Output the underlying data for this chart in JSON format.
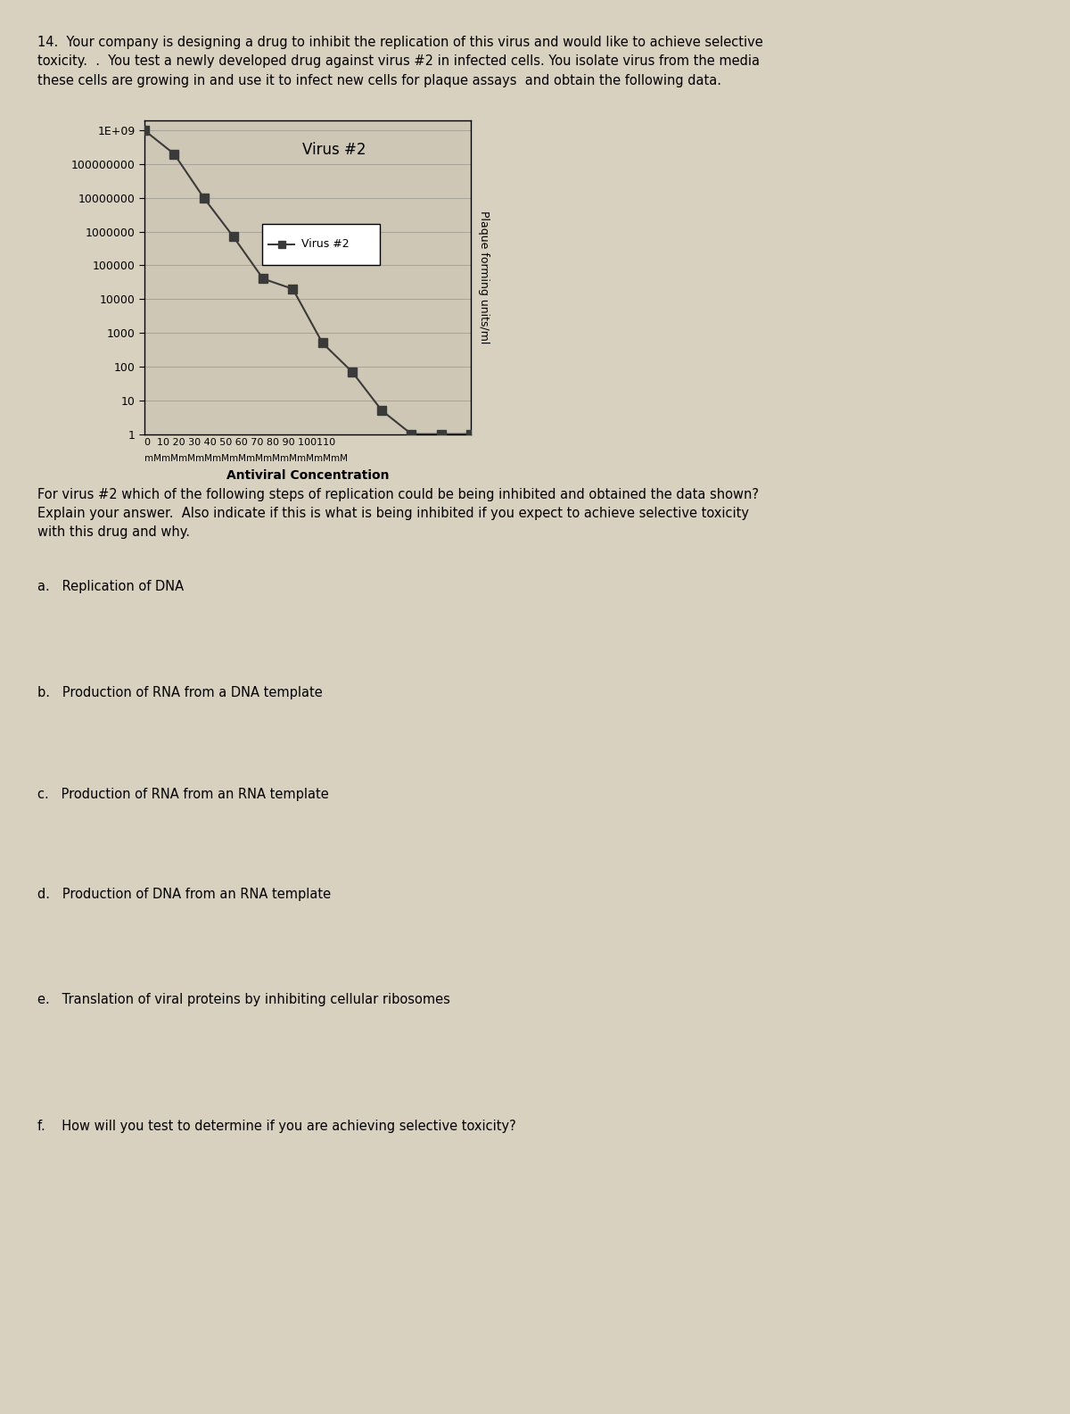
{
  "title_text": "14.  Your company is designing a drug to inhibit the replication of this virus and would like to achieve selective\ntoxicity.  .  You test a newly developed drug against virus #2 in infected cells. You isolate virus from the media\nthese cells are growing in and use it to infect new cells for plaque assays  and obtain the following data.",
  "chart_title": "Virus #2",
  "legend_label": "Virus #2",
  "xlabel_line1": "0  10 20 30 40 50 60 70 80 90 100110",
  "xlabel_line2": "mMmMmMmMmMmMmMmMmMmMmMmM",
  "xlabel_main": "Antiviral Concentration",
  "ylabel": "Plaque forming units/ml",
  "x_values": [
    0,
    10,
    20,
    30,
    40,
    50,
    60,
    70,
    80,
    90,
    100,
    110
  ],
  "y_values": [
    1000000000,
    200000000,
    10000000,
    700000,
    40000,
    20000,
    500,
    70,
    5,
    1,
    1,
    1
  ],
  "ytick_labels": [
    "1E+09",
    "100000000",
    "10000000",
    "1000000",
    "100000",
    "10000",
    "1000",
    "100",
    "10",
    "1"
  ],
  "ytick_values": [
    1000000000,
    100000000,
    10000000,
    1000000,
    100000,
    10000,
    1000,
    100,
    10,
    1
  ],
  "ymin": 1,
  "ymax": 2000000000,
  "xmin": 0,
  "xmax": 110,
  "line_color": "#3a3a3a",
  "marker_color": "#3a3a3a",
  "marker_style": "s",
  "background_color": "#d9d1c0",
  "chart_bg": "#cfc7b6",
  "question_text": "For virus #2 which of the following steps of replication could be being inhibited and obtained the data shown?\nExplain your answer.  Also indicate if this is what is being inhibited if you expect to achieve selective toxicity\nwith this drug and why.",
  "options": [
    "a.   Replication of DNA",
    "b.   Production of RNA from a DNA template",
    "c.   Production of RNA from an RNA template",
    "d.   Production of DNA from an RNA template",
    "e.   Translation of viral proteins by inhibiting cellular ribosomes",
    "f.    How will you test to determine if you are achieving selective toxicity?"
  ]
}
